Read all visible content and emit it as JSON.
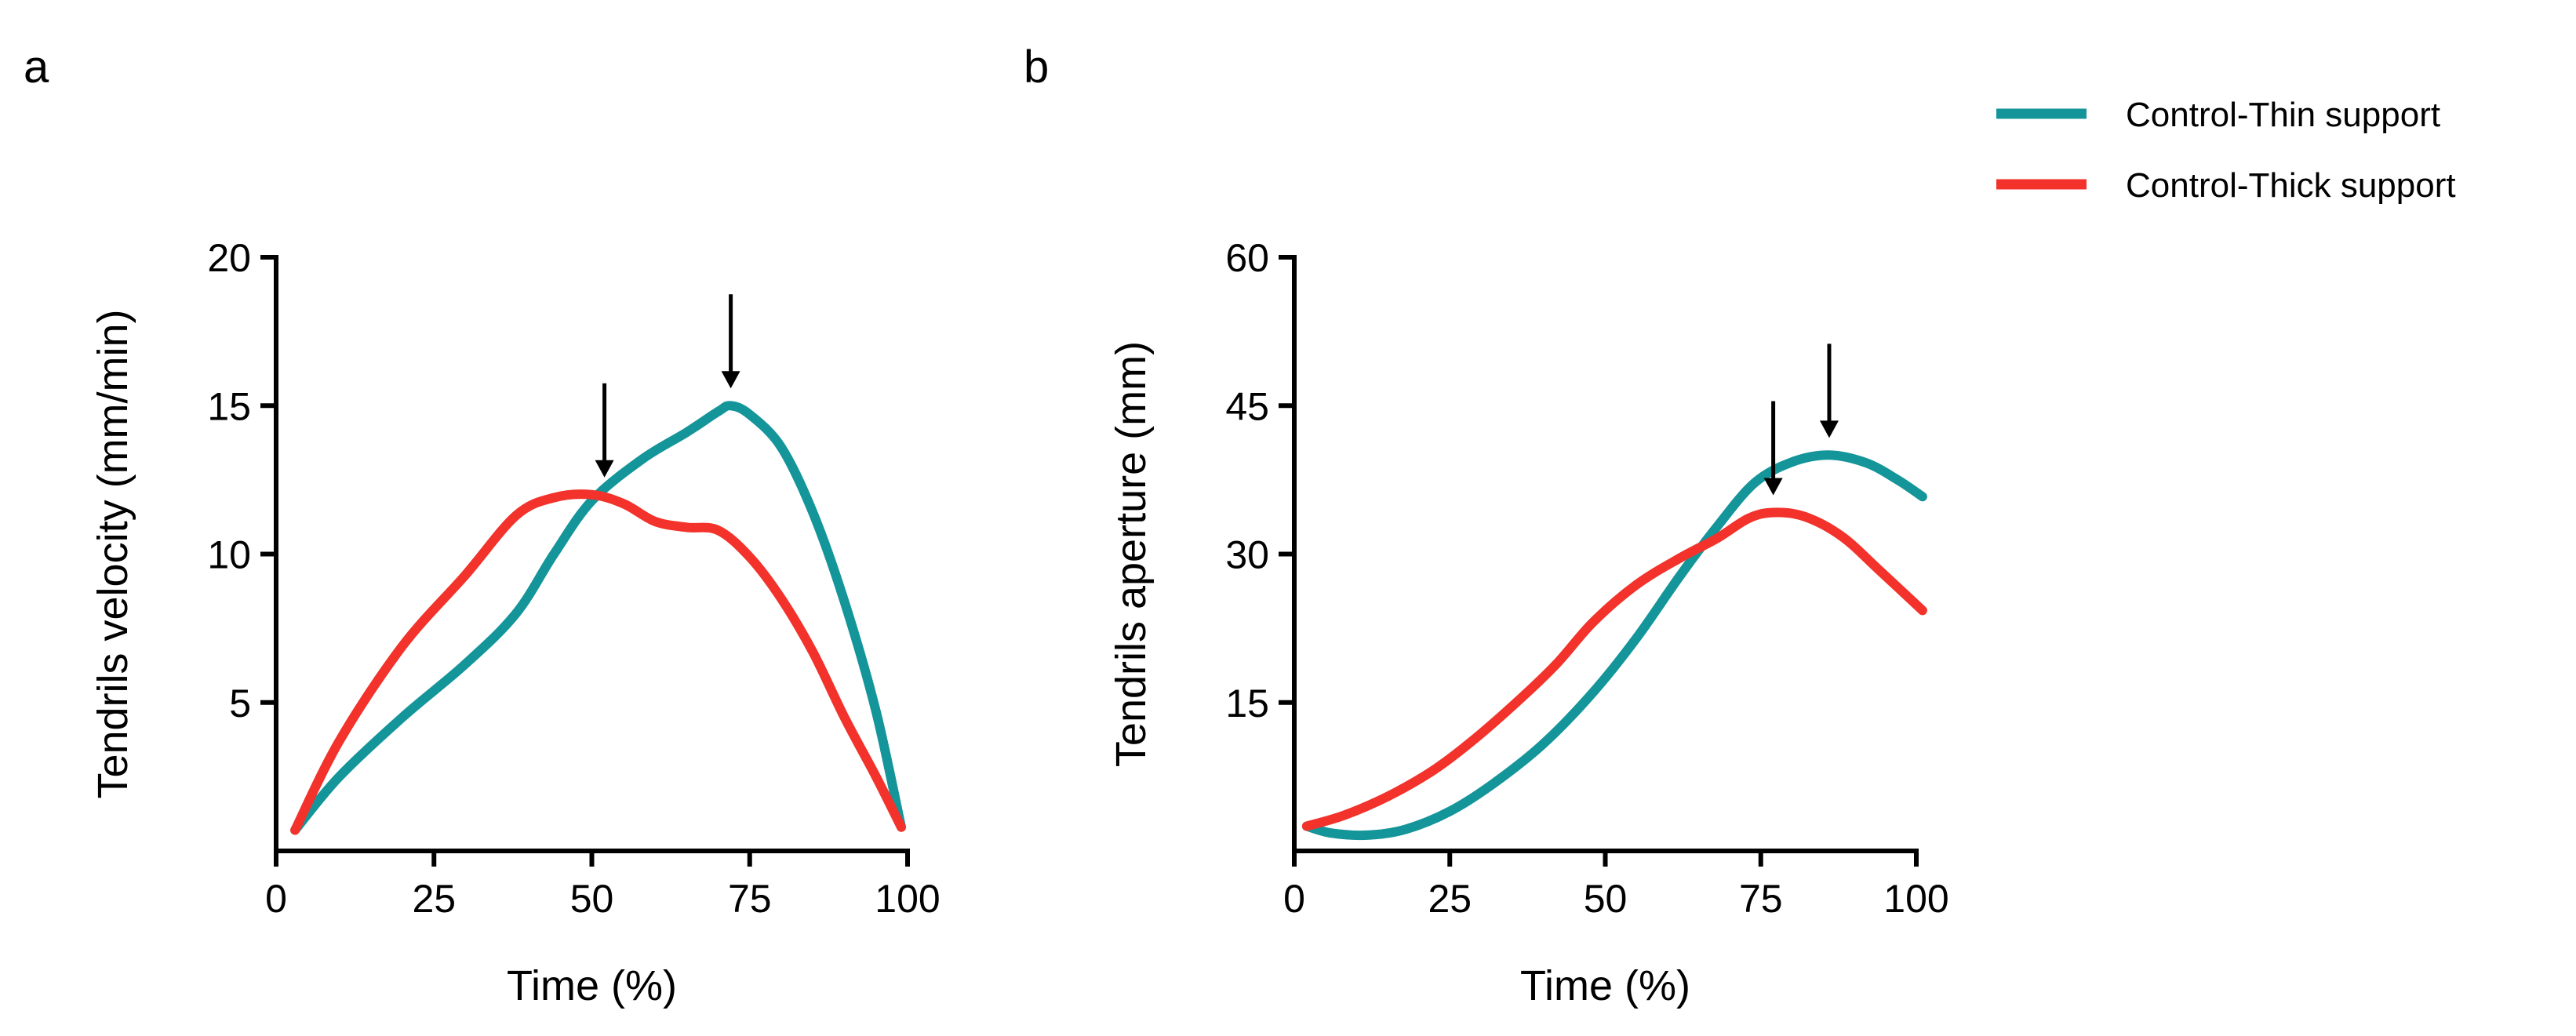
{
  "legend": [
    {
      "label": "Control-Thin support",
      "color": "#14959a"
    },
    {
      "label": "Control-Thick support",
      "color": "#f2322b"
    }
  ],
  "chart_data": [
    {
      "type": "line",
      "panel": "a",
      "xlabel": "Time (%)",
      "ylabel": "Tendrils velocity (mm/min)",
      "xlim": [
        0,
        100
      ],
      "ylim": [
        0,
        20
      ],
      "xticks": [
        0,
        25,
        50,
        75,
        100
      ],
      "yticks": [
        5,
        10,
        15,
        20
      ],
      "series": [
        {
          "name": "Control-Thin support",
          "color": "#14959a",
          "x": [
            3,
            10,
            20,
            30,
            38,
            44,
            50,
            58,
            65,
            70,
            72,
            75,
            80,
            85,
            90,
            95,
            99
          ],
          "y": [
            0.7,
            2.5,
            4.5,
            6.3,
            8,
            10,
            11.8,
            13.2,
            14.1,
            14.8,
            15,
            14.7,
            13.6,
            11.4,
            8.4,
            4.7,
            0.8
          ]
        },
        {
          "name": "Control-Thick support",
          "color": "#f2322b",
          "x": [
            3,
            10,
            20,
            30,
            38,
            44,
            50,
            55,
            60,
            65,
            70,
            75,
            80,
            85,
            90,
            95,
            99
          ],
          "y": [
            0.7,
            3.7,
            6.9,
            9.3,
            11.3,
            11.9,
            12,
            11.7,
            11.1,
            10.9,
            10.8,
            9.9,
            8.5,
            6.7,
            4.5,
            2.5,
            0.8
          ]
        }
      ],
      "annotations": [
        {
          "type": "arrow",
          "x": 52,
          "y": 12
        },
        {
          "type": "arrow",
          "x": 72,
          "y": 15
        }
      ]
    },
    {
      "type": "line",
      "panel": "b",
      "xlabel": "Time (%)",
      "ylabel": "Tendrils aperture (mm)",
      "xlim": [
        0,
        100
      ],
      "ylim": [
        0,
        60
      ],
      "xticks": [
        0,
        25,
        50,
        75,
        100
      ],
      "yticks": [
        15,
        30,
        45,
        60
      ],
      "series": [
        {
          "name": "Control-Thin support",
          "color": "#14959a",
          "x": [
            2,
            6,
            12,
            18,
            25,
            32,
            40,
            48,
            55,
            62,
            68,
            74,
            80,
            86,
            92,
            97,
            101
          ],
          "y": [
            2.5,
            1.8,
            1.6,
            2.2,
            4,
            6.8,
            10.8,
            16,
            21.5,
            27.8,
            32.8,
            37.2,
            39.3,
            40,
            39.2,
            37.5,
            35.8
          ]
        },
        {
          "name": "Control-Thick support",
          "color": "#f2322b",
          "x": [
            2,
            8,
            15,
            22,
            28,
            35,
            42,
            48,
            55,
            62,
            68,
            73,
            77,
            82,
            88,
            94,
            101
          ],
          "y": [
            2.5,
            3.6,
            5.5,
            8,
            10.8,
            14.6,
            18.8,
            23.1,
            26.9,
            29.6,
            31.6,
            33.6,
            34.2,
            33.8,
            31.8,
            28.4,
            24.3
          ]
        }
      ],
      "annotations": [
        {
          "type": "arrow",
          "x": 77,
          "y": 34.2
        },
        {
          "type": "arrow",
          "x": 86,
          "y": 40
        }
      ]
    }
  ]
}
